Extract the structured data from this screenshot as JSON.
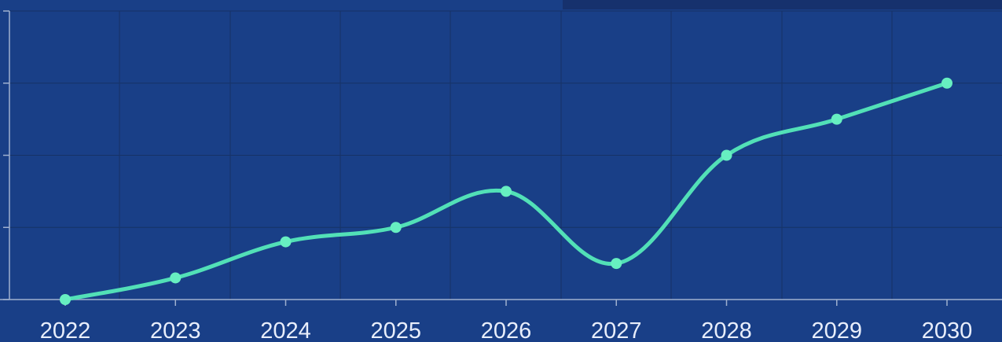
{
  "chart_data": {
    "type": "line",
    "x": [
      "2022",
      "2023",
      "2024",
      "2025",
      "2026",
      "2027",
      "2028",
      "2029",
      "2030"
    ],
    "series": [
      {
        "values": [
          0,
          3,
          8,
          10,
          15,
          5,
          20,
          25,
          30
        ]
      }
    ],
    "xlabel": "",
    "ylabel": "",
    "ylim": [
      0,
      40
    ],
    "grid": true,
    "smooth": true
  },
  "colors": {
    "background": "#193f87",
    "grid": "#163266",
    "axis": "#9fb0cf",
    "line": "#52e0b7",
    "marker": "#67efc1",
    "text": "#e8eefb",
    "top_accent": "#16316d"
  }
}
